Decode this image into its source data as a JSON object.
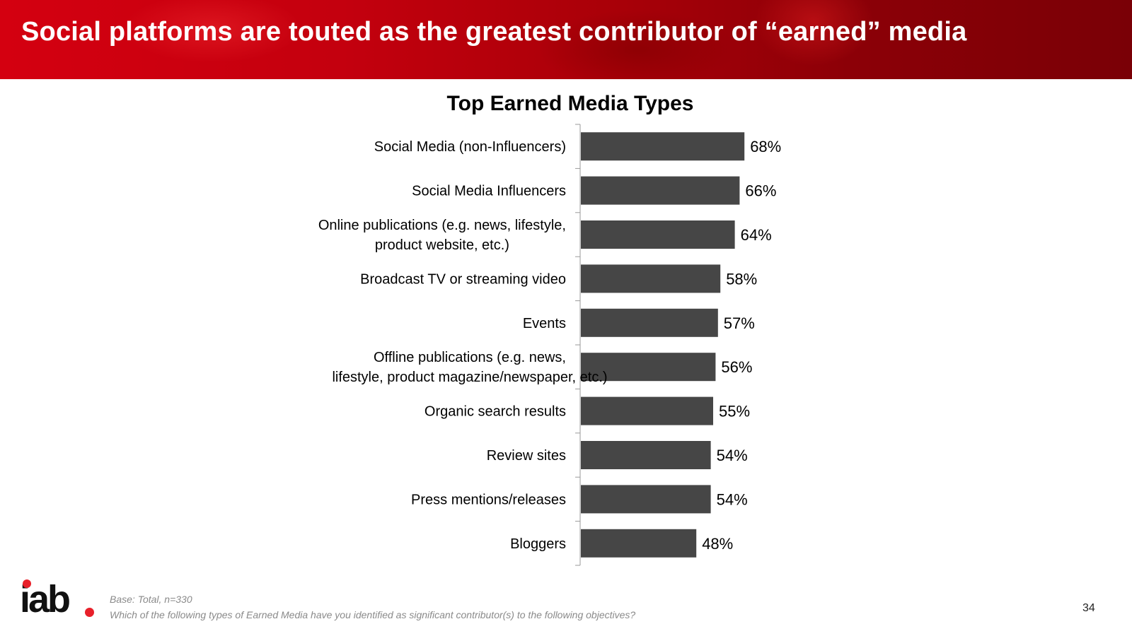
{
  "slide": {
    "title": "Social platforms are touted as the greatest contributor of “earned” media",
    "footnote_base": "Base: Total, n=330",
    "footnote_question": "Which of the following types of Earned Media have you identified as significant contributor(s) to the following objectives?",
    "page_number": "34",
    "logo_text": "iab"
  },
  "colors": {
    "banner": "#c4000e",
    "bar": "#464646",
    "logo_accent": "#e8202a"
  },
  "chart_data": {
    "type": "bar",
    "orientation": "horizontal",
    "title": "Top Earned Media Types",
    "categories": [
      "Social Media (non-Influencers)",
      "Social Media Influencers",
      "Online publications (e.g. news, lifestyle, product website, etc.)",
      "Broadcast TV or streaming video",
      "Events",
      "Offline publications (e.g. news, lifestyle, product magazine/newspaper, etc.)",
      "Organic search results",
      "Review sites",
      "Press mentions/releases",
      "Bloggers"
    ],
    "values": [
      68,
      66,
      64,
      58,
      57,
      56,
      55,
      54,
      54,
      48
    ],
    "value_labels": [
      "68%",
      "66%",
      "64%",
      "58%",
      "57%",
      "56%",
      "55%",
      "54%",
      "54%",
      "48%"
    ],
    "unit": "%",
    "xlabel": "",
    "ylabel": "",
    "legend": false,
    "grid": false
  }
}
